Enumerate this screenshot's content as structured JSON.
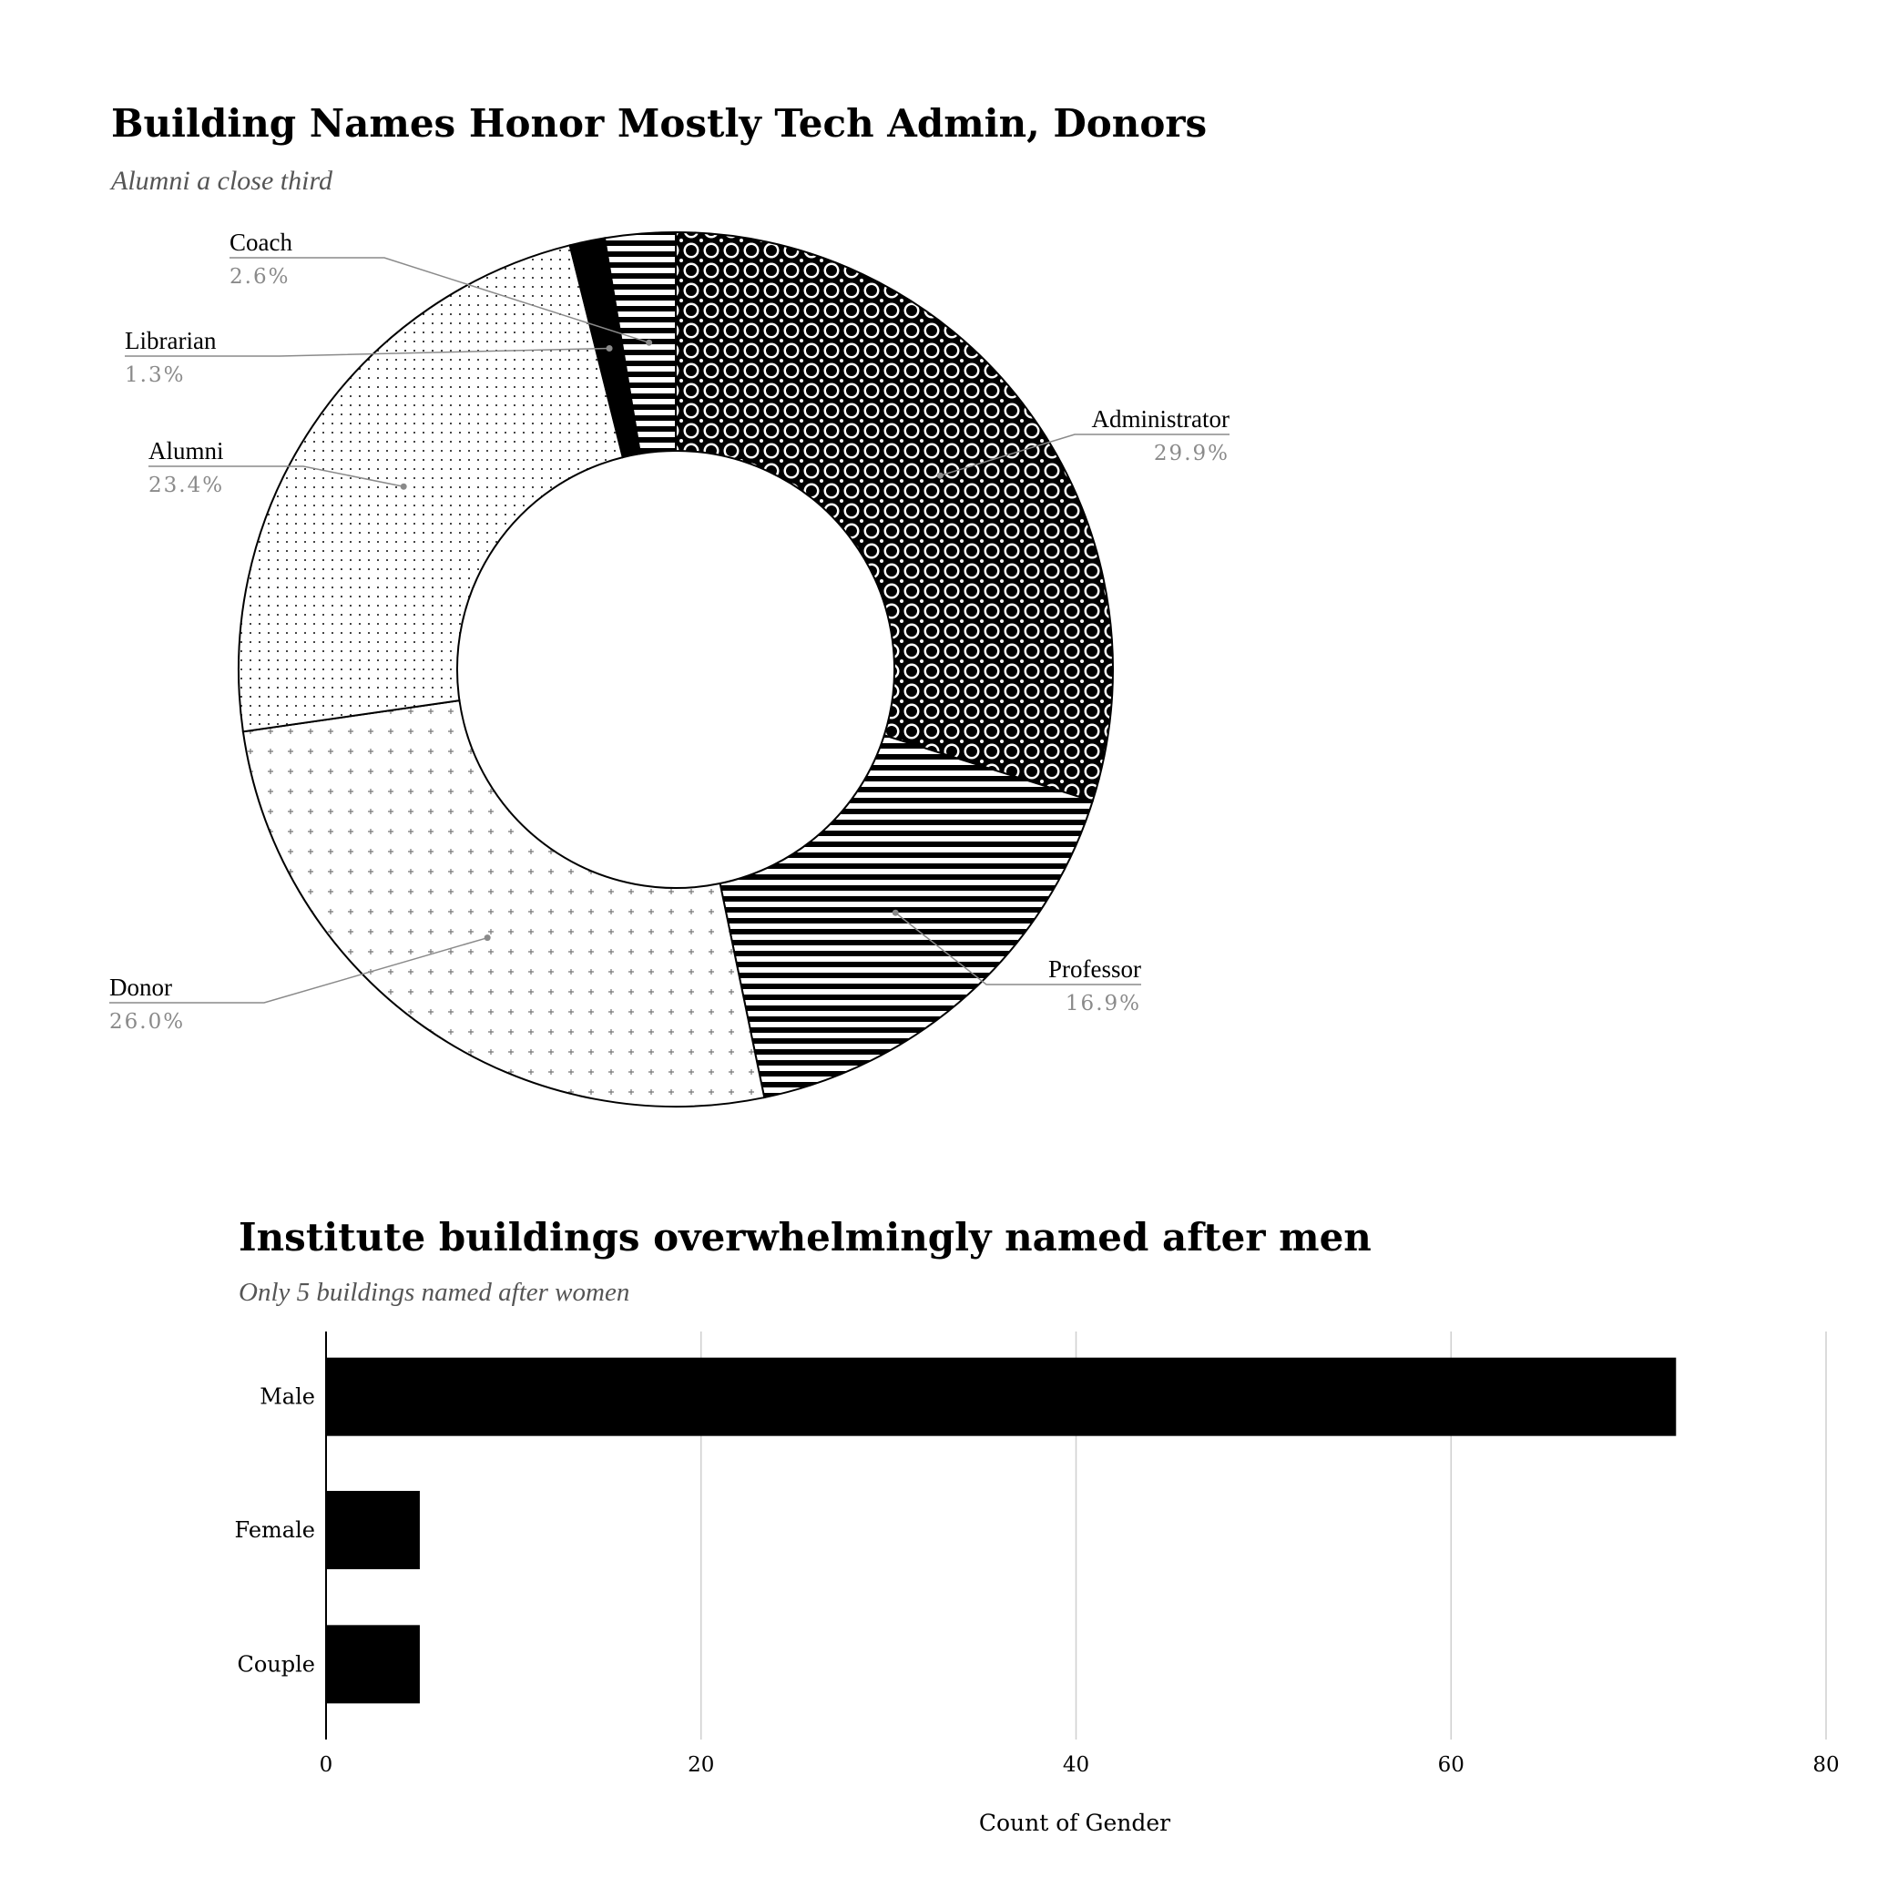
{
  "chart_data": [
    {
      "type": "pie",
      "style": "donut",
      "title": "Building Names Honor Mostly Tech Admin, Donors",
      "subtitle": "Alumni a close third",
      "slices": [
        {
          "label": "Administrator",
          "percent": 29.9,
          "display": "29.9%",
          "pattern": "circles"
        },
        {
          "label": "Professor",
          "percent": 16.9,
          "display": "16.9%",
          "pattern": "hstripes"
        },
        {
          "label": "Donor",
          "percent": 26.0,
          "display": "26.0%",
          "pattern": "plus"
        },
        {
          "label": "Alumni",
          "percent": 23.4,
          "display": "23.4%",
          "pattern": "dots"
        },
        {
          "label": "Librarian",
          "percent": 1.3,
          "display": "1.3%",
          "pattern": "solid"
        },
        {
          "label": "Coach",
          "percent": 2.6,
          "display": "2.6%",
          "pattern": "hstripes"
        }
      ]
    },
    {
      "type": "bar",
      "orientation": "horizontal",
      "title": "Institute buildings overwhelmingly named after men",
      "subtitle": "Only 5 buildings named after women",
      "categories": [
        "Male",
        "Female",
        "Couple"
      ],
      "values": [
        72,
        5,
        5
      ],
      "xlabel": "Count of Gender",
      "xlim": [
        0,
        80
      ],
      "xticks": [
        0,
        20,
        40,
        60,
        80
      ],
      "grid": true,
      "bar_color": "#000000"
    }
  ]
}
